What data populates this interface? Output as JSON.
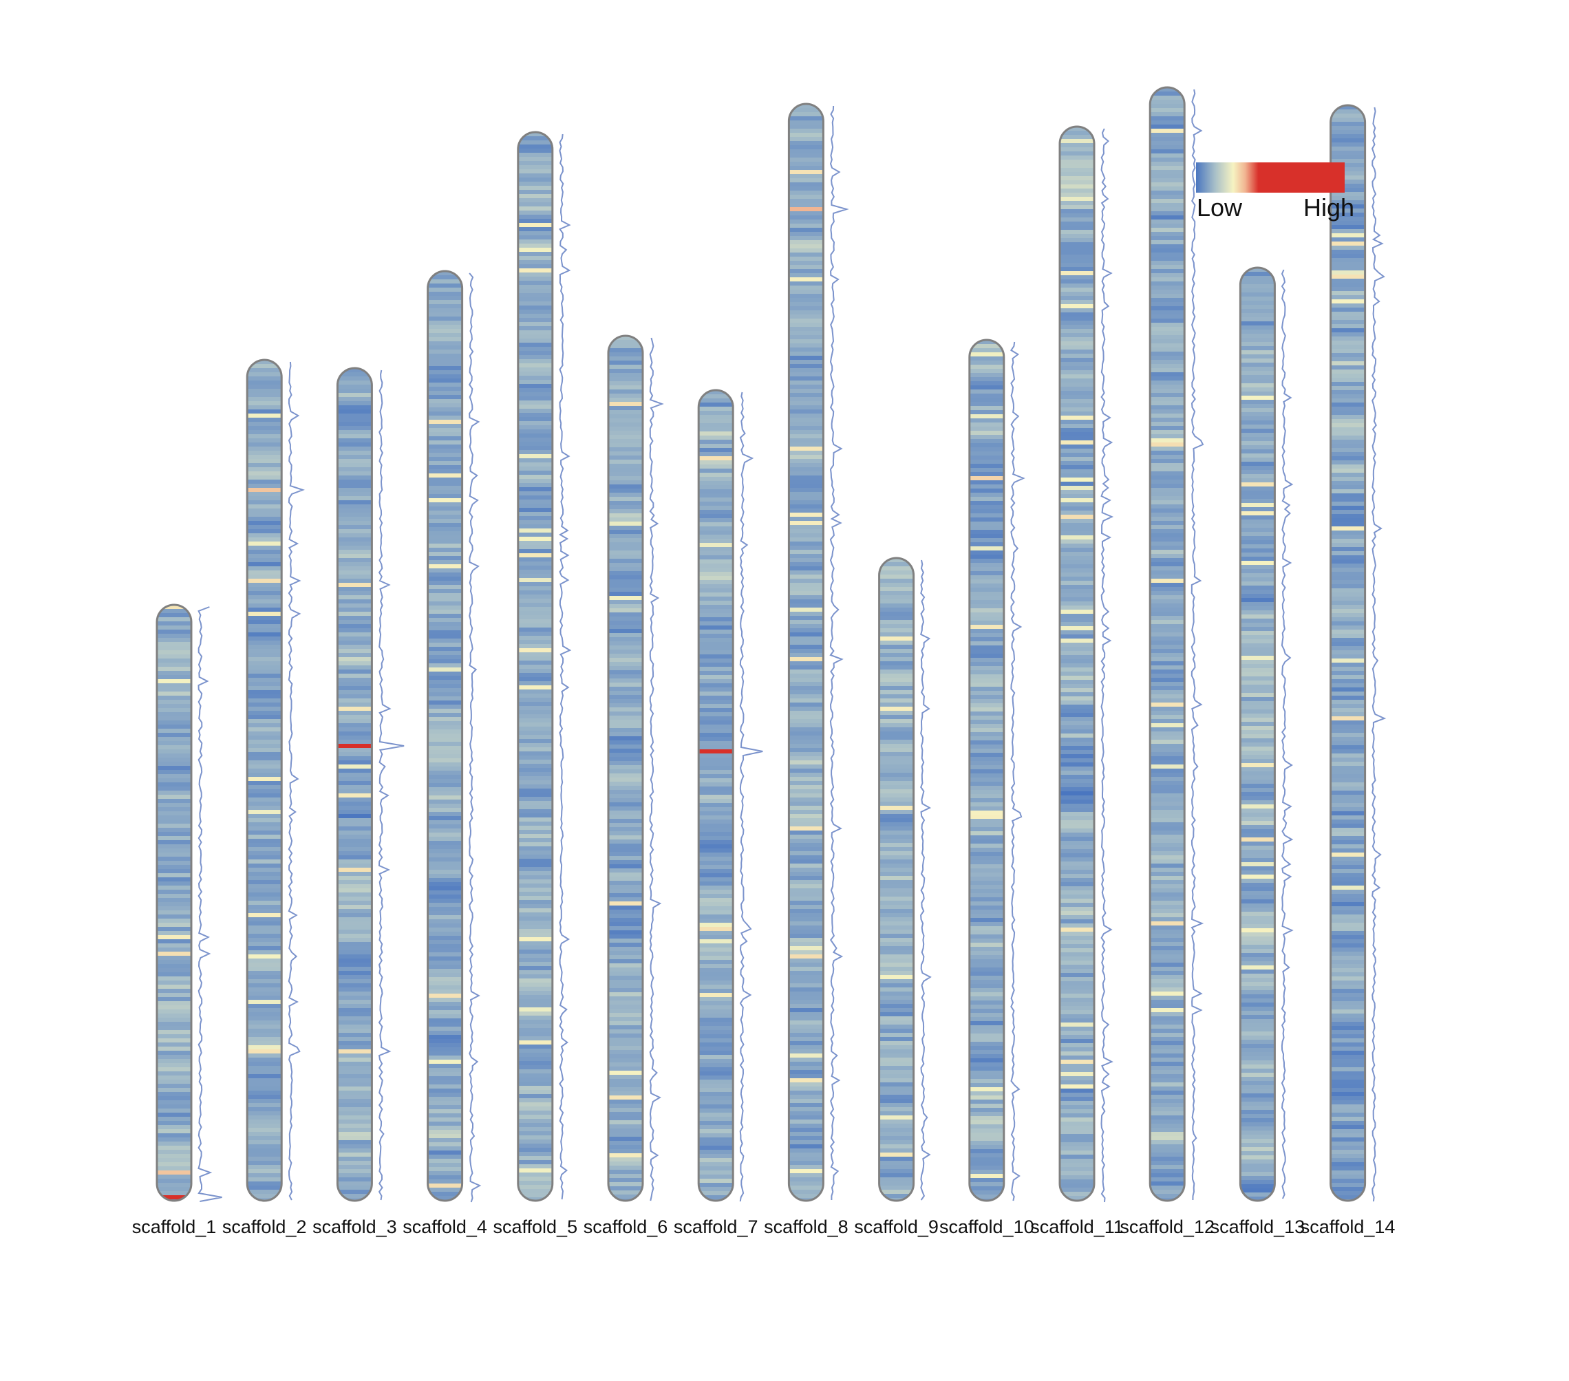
{
  "chart_data": {
    "type": "heatmap",
    "subtype": "chromosome density ideogram",
    "title": "",
    "xlabel": "",
    "ylabel": "",
    "legend": {
      "low_label": "Low",
      "high_label": "High",
      "placement": "top-right"
    },
    "colors": {
      "low": "#4a76c0",
      "mid_low": "#a9c0c8",
      "mid": "#f6f3c2",
      "mid_high": "#f1b592",
      "high": "#d8302a",
      "outline": "#808080",
      "density_line": "#7b93cc"
    },
    "scaffolds": [
      {
        "name": "scaffold_1",
        "relative_length": 0.535,
        "hotspots": [
          {
            "pos": 0.995,
            "value": 1.0
          },
          {
            "pos": 0.95,
            "value": 0.7
          }
        ]
      },
      {
        "name": "scaffold_2",
        "relative_length": 0.755,
        "hotspots": [
          {
            "pos": 0.155,
            "value": 0.7
          }
        ]
      },
      {
        "name": "scaffold_3",
        "relative_length": 0.748,
        "hotspots": [
          {
            "pos": 0.455,
            "value": 1.0
          }
        ]
      },
      {
        "name": "scaffold_4",
        "relative_length": 0.835,
        "hotspots": []
      },
      {
        "name": "scaffold_5",
        "relative_length": 0.96,
        "hotspots": []
      },
      {
        "name": "scaffold_6",
        "relative_length": 0.777,
        "hotspots": []
      },
      {
        "name": "scaffold_7",
        "relative_length": 0.728,
        "hotspots": [
          {
            "pos": 0.445,
            "value": 1.0
          }
        ]
      },
      {
        "name": "scaffold_8",
        "relative_length": 0.985,
        "hotspots": [
          {
            "pos": 0.095,
            "value": 0.75
          }
        ]
      },
      {
        "name": "scaffold_9",
        "relative_length": 0.577,
        "hotspots": []
      },
      {
        "name": "scaffold_10",
        "relative_length": 0.773,
        "hotspots": [
          {
            "pos": 0.16,
            "value": 0.65
          }
        ]
      },
      {
        "name": "scaffold_11",
        "relative_length": 0.965,
        "hotspots": []
      },
      {
        "name": "scaffold_12",
        "relative_length": 1.0,
        "hotspots": []
      },
      {
        "name": "scaffold_13",
        "relative_length": 0.838,
        "hotspots": []
      },
      {
        "name": "scaffold_14",
        "relative_length": 0.984,
        "hotspots": []
      }
    ]
  }
}
